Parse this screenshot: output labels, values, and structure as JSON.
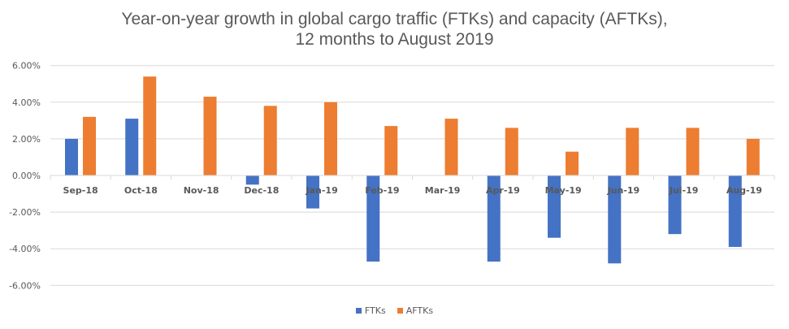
{
  "chart_data": {
    "type": "bar",
    "title": "Year-on-year growth in global cargo traffic (FTKs) and capacity (AFTKs),",
    "subtitle": "12 months to August 2019",
    "xlabel": "",
    "ylabel": "",
    "categories": [
      "Sep-18",
      "Oct-18",
      "Nov-18",
      "Dec-18",
      "Jan-19",
      "Feb-19",
      "Mar-19",
      "Apr-19",
      "May-19",
      "Jun-19",
      "Jul-19",
      "Aug-19"
    ],
    "series": [
      {
        "name": "FTKs",
        "color": "#4472C4",
        "values": [
          2.0,
          3.1,
          0.0,
          -0.5,
          -1.8,
          -4.7,
          0.0,
          -4.7,
          -3.4,
          -4.8,
          -3.2,
          -3.9
        ]
      },
      {
        "name": "AFTKs",
        "color": "#ED7D31",
        "values": [
          3.2,
          5.4,
          4.3,
          3.8,
          4.0,
          2.7,
          3.1,
          2.6,
          1.3,
          2.6,
          2.6,
          2.0
        ]
      }
    ],
    "ylim": [
      -6,
      6
    ],
    "yticks": [
      6,
      4,
      2,
      0,
      -2,
      -4,
      -6
    ],
    "ytick_labels": [
      "6.00%",
      "4.00%",
      "2.00%",
      "0.00%",
      "-2.00%",
      "-4.00%",
      "-6.00%"
    ],
    "grid": true,
    "legend_position": "bottom",
    "gridline_color": "#D9D9D9"
  }
}
